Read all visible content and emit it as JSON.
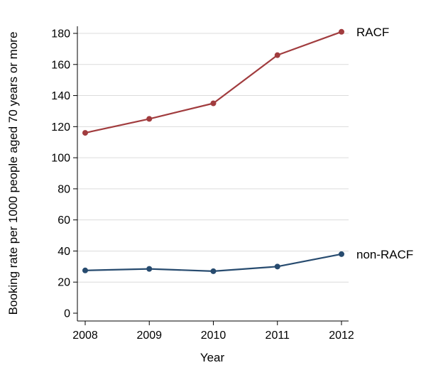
{
  "chart_data": {
    "type": "line",
    "x": [
      2008,
      2009,
      2010,
      2011,
      2012
    ],
    "xlabel": "Year",
    "ylabel": "Booking rate per 1000 people aged 70 years or more",
    "ylim": [
      0,
      180
    ],
    "yticks": [
      0,
      20,
      40,
      60,
      80,
      100,
      120,
      140,
      160,
      180
    ],
    "xticks": [
      2008,
      2009,
      2010,
      2011,
      2012
    ],
    "grid": "horizontal",
    "legend": "none (series labeled at right end of lines)",
    "series": [
      {
        "name": "RACF",
        "color": "#a13c3e",
        "values": [
          116,
          125,
          135,
          166,
          181
        ]
      },
      {
        "name": "non-RACF",
        "color": "#274b6f",
        "values": [
          27.5,
          28.5,
          27,
          30,
          38
        ]
      }
    ]
  }
}
